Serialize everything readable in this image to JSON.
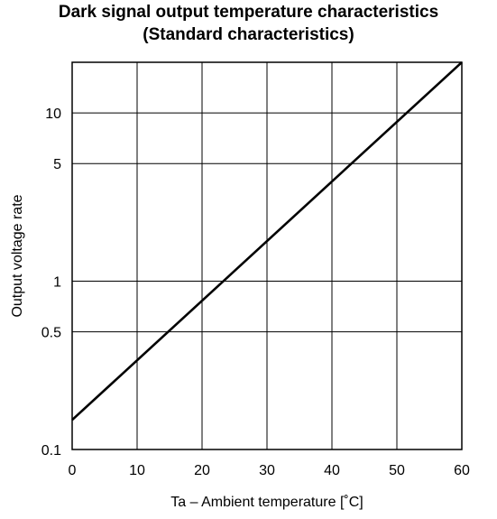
{
  "chart_data": {
    "type": "line",
    "title_line1": "Dark signal output temperature characteristics",
    "title_line2": "(Standard characteristics)",
    "xlabel": "Ta – Ambient temperature [˚C]",
    "ylabel": "Output voltage rate",
    "x_scale": "linear",
    "y_scale": "log",
    "xlim": [
      0,
      60
    ],
    "ylim": [
      0.1,
      20
    ],
    "x_ticks": [
      0,
      10,
      20,
      30,
      40,
      50,
      60
    ],
    "x_tick_labels": [
      "0",
      "10",
      "20",
      "30",
      "40",
      "50",
      "60"
    ],
    "y_ticks": [
      0.1,
      0.5,
      1,
      5,
      10
    ],
    "y_tick_labels": [
      "0.1",
      "0.5",
      "1",
      "5",
      "10"
    ],
    "y_gridlines": [
      0.5,
      1,
      5,
      10
    ],
    "grid": true,
    "series": [
      {
        "x": [
          0,
          60
        ],
        "y": [
          0.15,
          20
        ]
      }
    ]
  }
}
